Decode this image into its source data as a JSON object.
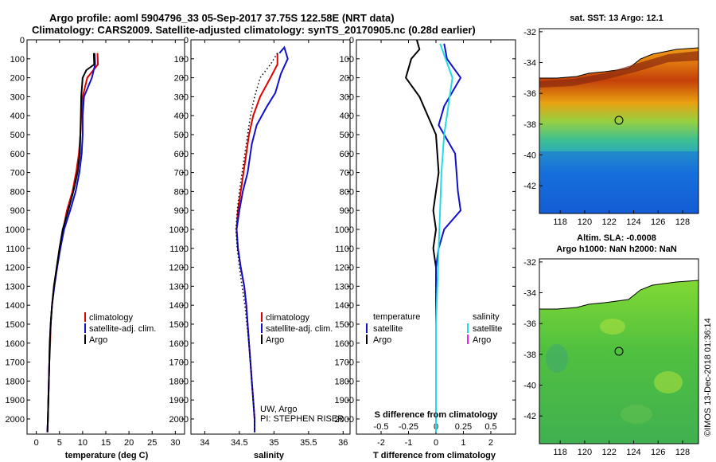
{
  "chart_data": [
    {
      "type": "line",
      "title": "Argo profile: aoml 5904796_33 05-Sep-2017 37.75S 122.58E (NRT data)",
      "subtitle": "Climatology: CARS2009. Satellite-adjusted climatology: synTS_20170905.nc (0.28d earlier)",
      "xlabel": "temperature (deg C)",
      "xlim": [
        -2,
        32
      ],
      "ylim": [
        2080,
        0
      ],
      "xticks": [
        "0",
        "5",
        "10",
        "15",
        "20",
        "25",
        "30"
      ],
      "yticks": [
        "0",
        "100",
        "200",
        "300",
        "400",
        "500",
        "600",
        "700",
        "800",
        "900",
        "1000",
        "1100",
        "1200",
        "1300",
        "1400",
        "1500",
        "1600",
        "1700",
        "1800",
        "1900",
        "2000"
      ],
      "legend": [
        "climatology",
        "satellite-adj. clim.",
        "Argo"
      ],
      "legend_position": "lower-right",
      "series": [
        {
          "name": "climatology",
          "color": "#dd0000",
          "style": "solid",
          "points": [
            [
              13.2,
              70
            ],
            [
              13.3,
              130
            ],
            [
              11,
              200
            ],
            [
              10,
              300
            ],
            [
              9.7,
              400
            ],
            [
              9.5,
              500
            ],
            [
              9.2,
              600
            ],
            [
              8.6,
              700
            ],
            [
              7.8,
              800
            ],
            [
              6.6,
              900
            ],
            [
              5.8,
              1000
            ],
            [
              5,
              1100
            ],
            [
              4.4,
              1200
            ],
            [
              3.8,
              1300
            ],
            [
              3.4,
              1400
            ],
            [
              3.1,
              1500
            ],
            [
              3,
              1600
            ],
            [
              2.8,
              1700
            ],
            [
              2.7,
              1800
            ],
            [
              2.6,
              1900
            ],
            [
              2.5,
              2000
            ],
            [
              2.4,
              2070
            ]
          ]
        },
        {
          "name": "satellite-adj. clim.",
          "color": "#1010cc",
          "style": "solid",
          "points": [
            [
              12.6,
              70
            ],
            [
              12.7,
              130
            ],
            [
              12,
              200
            ],
            [
              10.3,
              300
            ],
            [
              10,
              400
            ],
            [
              10,
              500
            ],
            [
              9.8,
              600
            ],
            [
              9.3,
              700
            ],
            [
              8.5,
              800
            ],
            [
              7.3,
              900
            ],
            [
              6,
              1000
            ],
            [
              5.2,
              1100
            ],
            [
              4.5,
              1200
            ],
            [
              3.9,
              1300
            ],
            [
              3.4,
              1400
            ],
            [
              3.1,
              1500
            ],
            [
              2.9,
              1600
            ],
            [
              2.8,
              1700
            ],
            [
              2.7,
              1800
            ],
            [
              2.6,
              1900
            ],
            [
              2.5,
              2000
            ],
            [
              2.4,
              2070
            ]
          ]
        },
        {
          "name": "Argo",
          "color": "#000000",
          "style": "solid",
          "points": [
            [
              12.4,
              70
            ],
            [
              12.5,
              130
            ],
            [
              10.8,
              160
            ],
            [
              10,
              200
            ],
            [
              9.7,
              300
            ],
            [
              9.6,
              400
            ],
            [
              9.5,
              500
            ],
            [
              9.4,
              600
            ],
            [
              8.9,
              700
            ],
            [
              8,
              800
            ],
            [
              6.9,
              900
            ],
            [
              5.7,
              1000
            ],
            [
              5,
              1100
            ],
            [
              4.4,
              1200
            ],
            [
              3.8,
              1300
            ],
            [
              3.4,
              1400
            ],
            [
              3.1,
              1500
            ],
            [
              2.9,
              1600
            ],
            [
              2.8,
              1700
            ],
            [
              2.7,
              1800
            ],
            [
              2.6,
              1900
            ],
            [
              2.5,
              2000
            ],
            [
              2.4,
              2070
            ]
          ]
        }
      ]
    },
    {
      "type": "line",
      "xlabel": "salinity",
      "xlim": [
        33.8,
        36.1
      ],
      "ylim": [
        2080,
        0
      ],
      "xticks": [
        "34",
        "34.5",
        "35",
        "35.5",
        "36"
      ],
      "legend": [
        "climatology",
        "satellite-adj. clim.",
        "Argo"
      ],
      "legend_position": "lower-right",
      "annotations": [
        "UW, Argo",
        "PI: STEPHEN RISER"
      ],
      "series": [
        {
          "name": "climatology",
          "color": "#dd0000",
          "style": "solid",
          "points": [
            [
              35.05,
              70
            ],
            [
              35.05,
              130
            ],
            [
              34.95,
              200
            ],
            [
              34.8,
              300
            ],
            [
              34.7,
              400
            ],
            [
              34.64,
              500
            ],
            [
              34.6,
              600
            ],
            [
              34.56,
              700
            ],
            [
              34.52,
              800
            ],
            [
              34.48,
              900
            ],
            [
              34.46,
              1000
            ],
            [
              34.48,
              1100
            ],
            [
              34.52,
              1200
            ],
            [
              34.57,
              1300
            ],
            [
              34.6,
              1400
            ],
            [
              34.62,
              1500
            ],
            [
              34.64,
              1600
            ],
            [
              34.66,
              1700
            ],
            [
              34.68,
              1800
            ],
            [
              34.7,
              1900
            ],
            [
              34.72,
              2000
            ],
            [
              34.72,
              2070
            ]
          ]
        },
        {
          "name": "satellite-adj. clim.",
          "color": "#1010cc",
          "style": "solid",
          "points": [
            [
              35.08,
              70
            ],
            [
              35.15,
              40
            ],
            [
              35.2,
              100
            ],
            [
              35.1,
              180
            ],
            [
              35.02,
              280
            ],
            [
              34.9,
              350
            ],
            [
              34.75,
              450
            ],
            [
              34.68,
              550
            ],
            [
              34.62,
              700
            ],
            [
              34.55,
              800
            ],
            [
              34.5,
              900
            ],
            [
              34.46,
              1000
            ],
            [
              34.48,
              1100
            ],
            [
              34.52,
              1200
            ],
            [
              34.57,
              1300
            ],
            [
              34.6,
              1400
            ],
            [
              34.62,
              1500
            ],
            [
              34.64,
              1600
            ],
            [
              34.66,
              1700
            ],
            [
              34.68,
              1800
            ],
            [
              34.7,
              1900
            ],
            [
              34.72,
              2000
            ],
            [
              34.72,
              2070
            ]
          ]
        },
        {
          "name": "Argo",
          "color": "#000000",
          "style": "dotted",
          "points": [
            [
              35.05,
              70
            ],
            [
              34.95,
              130
            ],
            [
              34.8,
              200
            ],
            [
              34.72,
              300
            ],
            [
              34.66,
              400
            ],
            [
              34.62,
              500
            ],
            [
              34.58,
              600
            ],
            [
              34.54,
              700
            ],
            [
              34.5,
              800
            ],
            [
              34.47,
              900
            ],
            [
              34.45,
              1000
            ],
            [
              34.47,
              1100
            ],
            [
              34.5,
              1200
            ],
            [
              34.54,
              1300
            ],
            [
              34.58,
              1400
            ],
            [
              34.61,
              1500
            ],
            [
              34.64,
              1600
            ],
            [
              34.66,
              1700
            ],
            [
              34.68,
              1800
            ],
            [
              34.7,
              1900
            ],
            [
              34.72,
              2000
            ],
            [
              34.72,
              2070
            ]
          ]
        }
      ]
    },
    {
      "type": "line",
      "xlabel": "T difference from climatology",
      "xlim": [
        -2.9,
        2.9
      ],
      "ylim": [
        2080,
        0
      ],
      "xticks": [
        "-2",
        "-1",
        "0",
        "1",
        "2"
      ],
      "secondary_xlabel": "S difference from climatology",
      "secondary_xticks": [
        "-0.5",
        "-0.25",
        "0",
        "0.25",
        "0.5"
      ],
      "legend_left": [
        "temperature",
        "satellite",
        "Argo"
      ],
      "legend_right": [
        "salinity",
        "satellite",
        "Argo"
      ],
      "series": [
        {
          "name": "temperature Argo",
          "color": "#000000",
          "points": [
            [
              -0.7,
              0
            ],
            [
              -0.6,
              50
            ],
            [
              -0.9,
              100
            ],
            [
              -1.1,
              200
            ],
            [
              -0.6,
              300
            ],
            [
              0,
              500
            ],
            [
              0.1,
              700
            ],
            [
              -0.1,
              900
            ],
            [
              0,
              1000
            ],
            [
              -0.1,
              1100
            ],
            [
              0,
              1200
            ],
            [
              0,
              2070
            ]
          ]
        },
        {
          "name": "temperature satellite",
          "color": "#1010cc",
          "points": [
            [
              0.3,
              20
            ],
            [
              0.4,
              100
            ],
            [
              0.9,
              200
            ],
            [
              0.3,
              350
            ],
            [
              0.1,
              450
            ],
            [
              0.7,
              600
            ],
            [
              0.8,
              800
            ],
            [
              0.9,
              900
            ],
            [
              0.3,
              1000
            ],
            [
              0.1,
              1100
            ],
            [
              0,
              1200
            ],
            [
              0,
              2070
            ]
          ]
        },
        {
          "name": "salinity satellite",
          "color": "#22dddd",
          "points": [
            [
              0.15,
              20
            ],
            [
              0.3,
              80
            ],
            [
              0.6,
              200
            ],
            [
              0.5,
              300
            ],
            [
              0.3,
              500
            ],
            [
              0.2,
              700
            ],
            [
              0.15,
              900
            ],
            [
              0.1,
              1100
            ],
            [
              0.05,
              1300
            ],
            [
              0,
              1500
            ],
            [
              0,
              2070
            ]
          ]
        }
      ]
    }
  ],
  "maps": [
    {
      "title": "sat. SST: 13 Argo: 12.1",
      "xticks": [
        "118",
        "120",
        "122",
        "124",
        "126",
        "128"
      ],
      "yticks": [
        "-32",
        "-34",
        "-36",
        "-38",
        "-40",
        "-42"
      ]
    },
    {
      "title_line1": "Altim. SLA: -0.0008",
      "title_line2": "Argo h1000: NaN h2000: NaN",
      "xticks": [
        "118",
        "120",
        "122",
        "124",
        "126",
        "128"
      ],
      "yticks": [
        "-32",
        "-34",
        "-36",
        "-38",
        "-40",
        "-42"
      ]
    }
  ],
  "credit": "©IMOS 13-Dec-2018 01:36:14"
}
